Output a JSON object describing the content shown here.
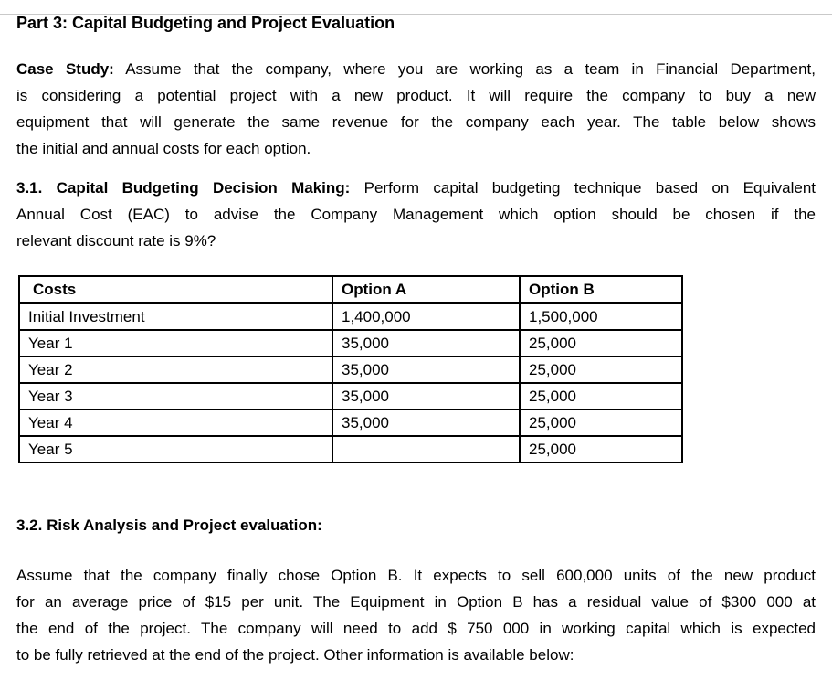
{
  "colors": {
    "text": "#000000",
    "table_border": "#000000",
    "top_edge_line": "#c9c9c9",
    "page_background": "#ffffff"
  },
  "page": {
    "title": "Part 3: Capital Budgeting and Project Evaluation",
    "case_study": {
      "bold_label": "Case Study:",
      "line1_rest": " Assume that the company, where you are working as a team in Financial Department,",
      "line2": "is considering a potential project with a new product. It will require the company to buy a new",
      "line3": "equipment that will generate the same revenue for the company each year. The table below shows",
      "line4": "the initial and annual costs for each option."
    },
    "section_3_1": {
      "bold_label": "3.1. Capital Budgeting Decision Making:",
      "line1_rest": " Perform capital budgeting technique based on Equivalent",
      "line2": "Annual Cost (EAC) to advise the Company Management which option should be chosen if the",
      "line3": "relevant discount rate is 9%?"
    },
    "costs_table": {
      "headers": [
        "Costs",
        "Option A",
        "Option B"
      ],
      "rows": [
        [
          "Initial Investment",
          "1,400,000",
          "1,500,000"
        ],
        [
          "Year 1",
          "35,000",
          "25,000"
        ],
        [
          "Year 2",
          "35,000",
          "25,000"
        ],
        [
          "Year 3",
          "35,000",
          "25,000"
        ],
        [
          "Year 4",
          "35,000",
          "25,000"
        ],
        [
          "Year 5",
          "",
          "25,000"
        ]
      ]
    },
    "section_3_2": {
      "heading": "3.2. Risk Analysis and Project evaluation:",
      "line1": "Assume that the company finally chose Option B. It expects to sell 600,000 units of the new product",
      "line2": "for an average price of $15 per unit. The Equipment in Option B has a residual value of $300 000 at",
      "line3": "the end of the project. The company will need to add $ 750 000 in working capital which is expected",
      "line4": "to be fully retrieved at the end of the project. Other information is available below:"
    }
  }
}
